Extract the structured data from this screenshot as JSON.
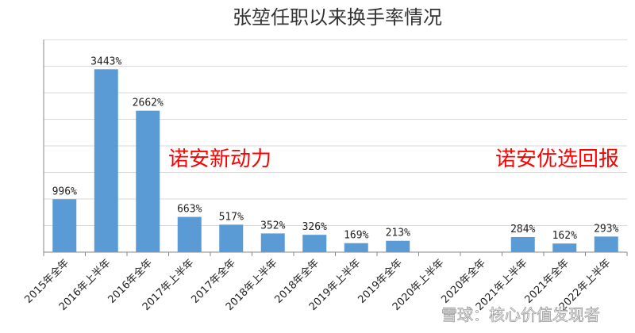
{
  "chart_data": {
    "type": "bar",
    "title": "张堃任职以来换手率情况",
    "categories": [
      "2015年全年",
      "2016年上半年",
      "2016年全年",
      "2017年上半年",
      "2017年全年",
      "2018年上半年",
      "2018年全年",
      "2019年上半年",
      "2019年全年",
      "2020年上半年",
      "2020年全年",
      "2021年上半年",
      "2021年全年",
      "2022年上半年"
    ],
    "values": [
      996,
      3443,
      2662,
      663,
      517,
      352,
      326,
      169,
      213,
      null,
      null,
      284,
      162,
      293
    ],
    "data_labels": [
      "996%",
      "3443%",
      "2662%",
      "663%",
      "517%",
      "352%",
      "326%",
      "169%",
      "213%",
      "",
      "",
      "284%",
      "162%",
      "293%"
    ],
    "ylim": [
      0,
      4000
    ],
    "grid": true,
    "bar_color": "#5b9bd5",
    "annotations": [
      {
        "text": "诺安新动力",
        "color": "#ff0000"
      },
      {
        "text": "诺安优选回报",
        "color": "#ff0000"
      }
    ],
    "watermark": "雪球：核心价值发现者"
  }
}
